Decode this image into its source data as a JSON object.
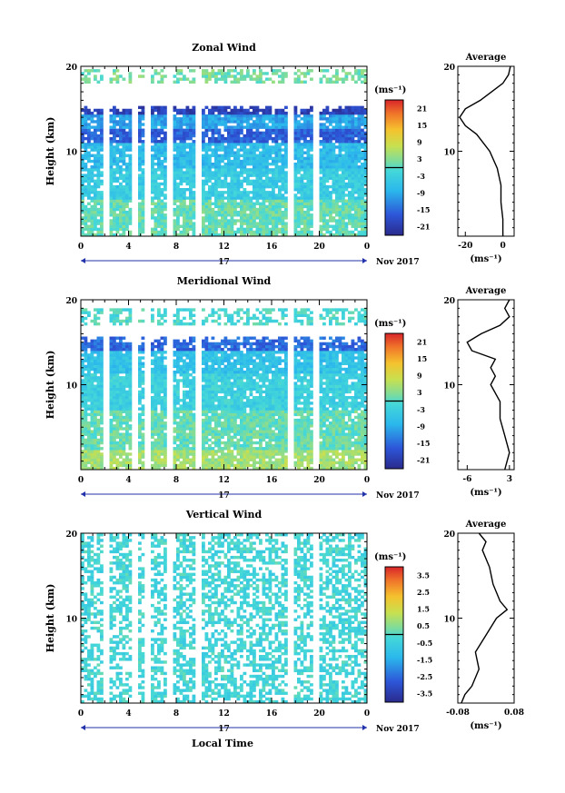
{
  "figure": {
    "xlabel": "Local Time",
    "date_label": "Nov 2017",
    "day_label": "17"
  },
  "chart_data": [
    {
      "type": "heatmap",
      "title": "Zonal Wind",
      "ylabel": "Height (km)",
      "ylim": [
        0,
        20
      ],
      "yticks": [
        10,
        20
      ],
      "xlim": [
        0,
        24
      ],
      "xticks": [
        "0",
        "4",
        "8",
        "12",
        "16",
        "20",
        "0"
      ],
      "colorbar": {
        "unit": "(ms⁻¹)",
        "range": [
          -24,
          24
        ],
        "ticks": [
          21,
          15,
          9,
          3,
          -3,
          -9,
          -15,
          -21
        ]
      },
      "gap_hours": [
        2.2,
        4.6,
        5.6,
        7.4,
        9.8,
        17.6,
        19.8
      ],
      "bands": [
        {
          "h0": 18.0,
          "h1": 19.8,
          "v": 2
        },
        {
          "h0": 14.5,
          "h1": 15.5,
          "v": -20
        },
        {
          "h0": 12.8,
          "h1": 14.5,
          "v": -10
        },
        {
          "h0": 11.0,
          "h1": 12.8,
          "v": -16
        },
        {
          "h0": 8.0,
          "h1": 11.0,
          "v": -7
        },
        {
          "h0": 4.5,
          "h1": 8.0,
          "v": -4
        },
        {
          "h0": 0.0,
          "h1": 4.5,
          "v": 1
        }
      ],
      "profile": {
        "title": "Average",
        "xlabel": "(ms⁻¹)",
        "xlim": [
          -24,
          6
        ],
        "xticks": [
          -20,
          0
        ],
        "heights": [
          0,
          2,
          4,
          6,
          8,
          10,
          12,
          13,
          14,
          15,
          16,
          17,
          18,
          19,
          20
        ],
        "values": [
          0,
          0,
          -1,
          -1,
          -3,
          -7,
          -14,
          -20,
          -23,
          -20,
          -12,
          -6,
          0,
          3,
          4
        ]
      }
    },
    {
      "type": "heatmap",
      "title": "Meridional Wind",
      "ylabel": "Height (km)",
      "ylim": [
        0,
        20
      ],
      "yticks": [
        10,
        20
      ],
      "xlim": [
        0,
        24
      ],
      "xticks": [
        "0",
        "4",
        "8",
        "12",
        "16",
        "20",
        "0"
      ],
      "colorbar": {
        "unit": "(ms⁻¹)",
        "range": [
          -24,
          24
        ],
        "ticks": [
          21,
          15,
          9,
          3,
          -3,
          -9,
          -15,
          -21
        ]
      },
      "gap_hours": [
        2.2,
        4.6,
        5.6,
        7.4,
        9.8,
        17.6,
        19.8
      ],
      "bands": [
        {
          "h0": 17.0,
          "h1": 19.0,
          "v": -1
        },
        {
          "h0": 14.0,
          "h1": 15.8,
          "v": -15
        },
        {
          "h0": 11.5,
          "h1": 14.0,
          "v": -6
        },
        {
          "h0": 7.0,
          "h1": 11.5,
          "v": -3
        },
        {
          "h0": 2.5,
          "h1": 7.0,
          "v": 1
        },
        {
          "h0": 0.0,
          "h1": 2.5,
          "v": 5
        }
      ],
      "profile": {
        "title": "Average",
        "xlabel": "(ms⁻¹)",
        "xlim": [
          -8,
          4
        ],
        "xticks": [
          -6,
          3
        ],
        "heights": [
          0,
          2,
          4,
          6,
          8,
          10,
          11,
          12,
          13,
          14,
          15,
          16,
          17,
          18,
          19,
          20
        ],
        "values": [
          2,
          3,
          2,
          1,
          1,
          -1,
          0,
          -1,
          0,
          -5,
          -6,
          -3,
          1,
          3,
          2,
          3
        ]
      }
    },
    {
      "type": "heatmap",
      "title": "Vertical Wind",
      "ylabel": "Height (km)",
      "ylim": [
        0,
        20
      ],
      "yticks": [
        10,
        20
      ],
      "xlim": [
        0,
        24
      ],
      "xticks": [
        "0",
        "4",
        "8",
        "12",
        "16",
        "20",
        "0"
      ],
      "colorbar": {
        "unit": "(ms⁻¹)",
        "range": [
          -4,
          4
        ],
        "ticks": [
          3.5,
          2.5,
          1.5,
          0.5,
          -0.5,
          -1.5,
          -2.5,
          -3.5
        ]
      },
      "gap_hours": [
        2.2,
        4.6,
        5.6,
        7.4,
        9.8,
        17.6,
        19.8
      ],
      "bands": [
        {
          "h0": 0.0,
          "h1": 20.0,
          "v": -0.3
        }
      ],
      "profile": {
        "title": "Average",
        "xlabel": "(ms⁻¹)",
        "xlim": [
          -0.08,
          0.08
        ],
        "xticks": [
          -0.08,
          0.08
        ],
        "heights": [
          0,
          1,
          2,
          4,
          6,
          8,
          10,
          11,
          12,
          14,
          16,
          18,
          19,
          20
        ],
        "values": [
          -0.07,
          -0.06,
          -0.04,
          -0.02,
          -0.03,
          0.0,
          0.03,
          0.06,
          0.04,
          0.02,
          0.01,
          -0.01,
          0.0,
          -0.02
        ]
      }
    }
  ]
}
